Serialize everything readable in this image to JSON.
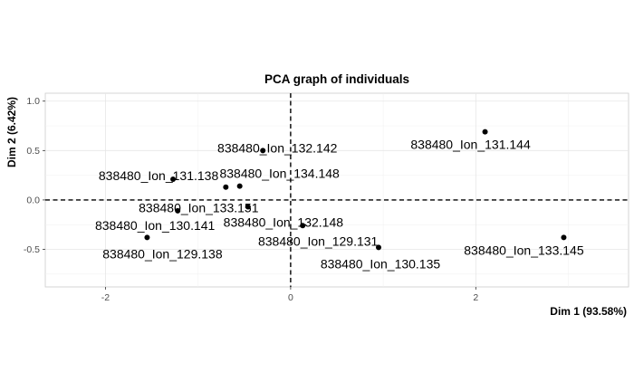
{
  "chart_data": {
    "type": "scatter",
    "title": "PCA graph of individuals",
    "xlabel": "Dim 1 (93.58%)",
    "ylabel": "Dim 2 (6.42%)",
    "xlim": [
      -2.65,
      3.65
    ],
    "ylim": [
      -0.88,
      1.08
    ],
    "xticks": [
      -2,
      0,
      2
    ],
    "xtick_labels": [
      "-2",
      "0",
      "2"
    ],
    "yticks": [
      -0.5,
      0.0,
      0.5,
      1.0
    ],
    "ytick_labels": [
      "-0.5",
      "0.0",
      "0.5",
      "1.0"
    ],
    "reference_lines": {
      "x": 0,
      "y": 0,
      "style": "dashed"
    },
    "grid": true,
    "points": [
      {
        "label": "838480_Ion_131.144",
        "x": 2.1,
        "y": 0.69
      },
      {
        "label": "838480_Ion_132.142",
        "x": -0.3,
        "y": 0.5
      },
      {
        "label": "838480_Ion_131.138",
        "x": -1.27,
        "y": 0.21
      },
      {
        "label": "838480_Ion_134.148",
        "x": -0.55,
        "y": 0.14
      },
      {
        "label": "838480_Ion_133.151",
        "x": -0.7,
        "y": 0.13
      },
      {
        "label": "838480_Ion_130.141",
        "x": -1.22,
        "y": -0.11
      },
      {
        "label": "838480_Ion_132.148",
        "x": -0.46,
        "y": -0.07
      },
      {
        "label": "838480_Ion_129.131",
        "x": 0.13,
        "y": -0.26
      },
      {
        "label": "838480_Ion_129.138",
        "x": -1.55,
        "y": -0.38
      },
      {
        "label": "838480_Ion_130.135",
        "x": 0.95,
        "y": -0.48
      },
      {
        "label": "838480_Ion_133.145",
        "x": 2.95,
        "y": -0.38
      }
    ]
  }
}
